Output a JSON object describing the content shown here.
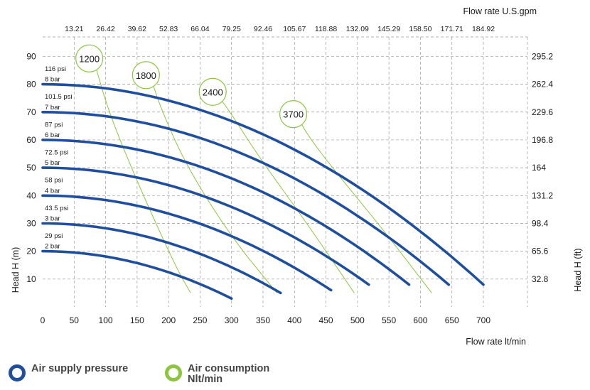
{
  "chart_data": {
    "type": "line",
    "xlabel": "Flow rate  lt/min",
    "x2label": "Flow rate U.S.gpm",
    "ylabel": "Head H (m)",
    "y2label": "Head H (ft)",
    "xlim": [
      0,
      770
    ],
    "ylim": [
      0,
      97
    ],
    "x_ticks": [
      0,
      50,
      100,
      150,
      200,
      250,
      300,
      350,
      400,
      450,
      500,
      550,
      600,
      650,
      700
    ],
    "x_tick_labels": [
      "0",
      "50",
      "100",
      "150",
      "200",
      "250",
      "300",
      "350",
      "400",
      "450",
      "500",
      "550",
      "600",
      "650",
      "700"
    ],
    "x2_ticks": [
      50,
      100,
      150,
      200,
      250,
      300,
      350,
      400,
      450,
      500,
      550,
      600,
      650,
      700
    ],
    "x2_tick_labels": [
      "13.21",
      "26.42",
      "39.62",
      "52.83",
      "66.04",
      "79.25",
      "92.46",
      "105.67",
      "118.88",
      "132.09",
      "145.29",
      "158.50",
      "171.71",
      "184.92"
    ],
    "y_ticks": [
      10,
      20,
      30,
      40,
      50,
      60,
      70,
      80,
      90
    ],
    "y_tick_labels": [
      "10",
      "20",
      "30",
      "40",
      "50",
      "60",
      "70",
      "80",
      "90"
    ],
    "y2_tick_labels": [
      "32.8",
      "65.6",
      "98.4",
      "131.2",
      "164",
      "196.8",
      "229.6",
      "262.4",
      "295.2"
    ],
    "grid": true,
    "pressure_curves": [
      {
        "bar": "2 bar",
        "psi": "29 psi",
        "head0": 20,
        "x_end": 300,
        "y_end": 3
      },
      {
        "bar": "3 bar",
        "psi": "43.5 psi",
        "head0": 30,
        "x_end": 378,
        "y_end": 5
      },
      {
        "bar": "4 bar",
        "psi": "58 psi",
        "head0": 40,
        "x_end": 458,
        "y_end": 6
      },
      {
        "bar": "5 bar",
        "psi": "72.5 psi",
        "head0": 50,
        "x_end": 518,
        "y_end": 8
      },
      {
        "bar": "6 bar",
        "psi": "87 psi",
        "head0": 60,
        "x_end": 582,
        "y_end": 8
      },
      {
        "bar": "7 bar",
        "psi": "101.5 psi",
        "head0": 70,
        "x_end": 645,
        "y_end": 8
      },
      {
        "bar": "8 bar",
        "psi": "116 psi",
        "head0": 80,
        "x_end": 700,
        "y_end": 8
      }
    ],
    "consumption_curves": [
      {
        "label": "1200",
        "points": [
          [
            82,
            88
          ],
          [
            105,
            70
          ],
          [
            150,
            45
          ],
          [
            210,
            15
          ],
          [
            235,
            5
          ]
        ]
      },
      {
        "label": "1800",
        "points": [
          [
            172,
            82
          ],
          [
            190,
            70
          ],
          [
            230,
            50
          ],
          [
            300,
            25
          ],
          [
            372,
            5
          ]
        ]
      },
      {
        "label": "2400",
        "points": [
          [
            278,
            76
          ],
          [
            298,
            70
          ],
          [
            340,
            55
          ],
          [
            420,
            30
          ],
          [
            495,
            5
          ]
        ]
      },
      {
        "label": "3700",
        "points": [
          [
            406,
            68
          ],
          [
            420,
            62
          ],
          [
            460,
            50
          ],
          [
            540,
            28
          ],
          [
            618,
            5
          ]
        ]
      }
    ]
  },
  "legend": {
    "air_supply": "Air supply pressure",
    "air_consumption": "Air consumption Nlt/min"
  },
  "colors": {
    "pressure": "#1f4f9c",
    "consumption": "#8cc63f",
    "psi_label": "#d9342b",
    "bar_label": "#1f4f9c",
    "grid": "#999999"
  }
}
